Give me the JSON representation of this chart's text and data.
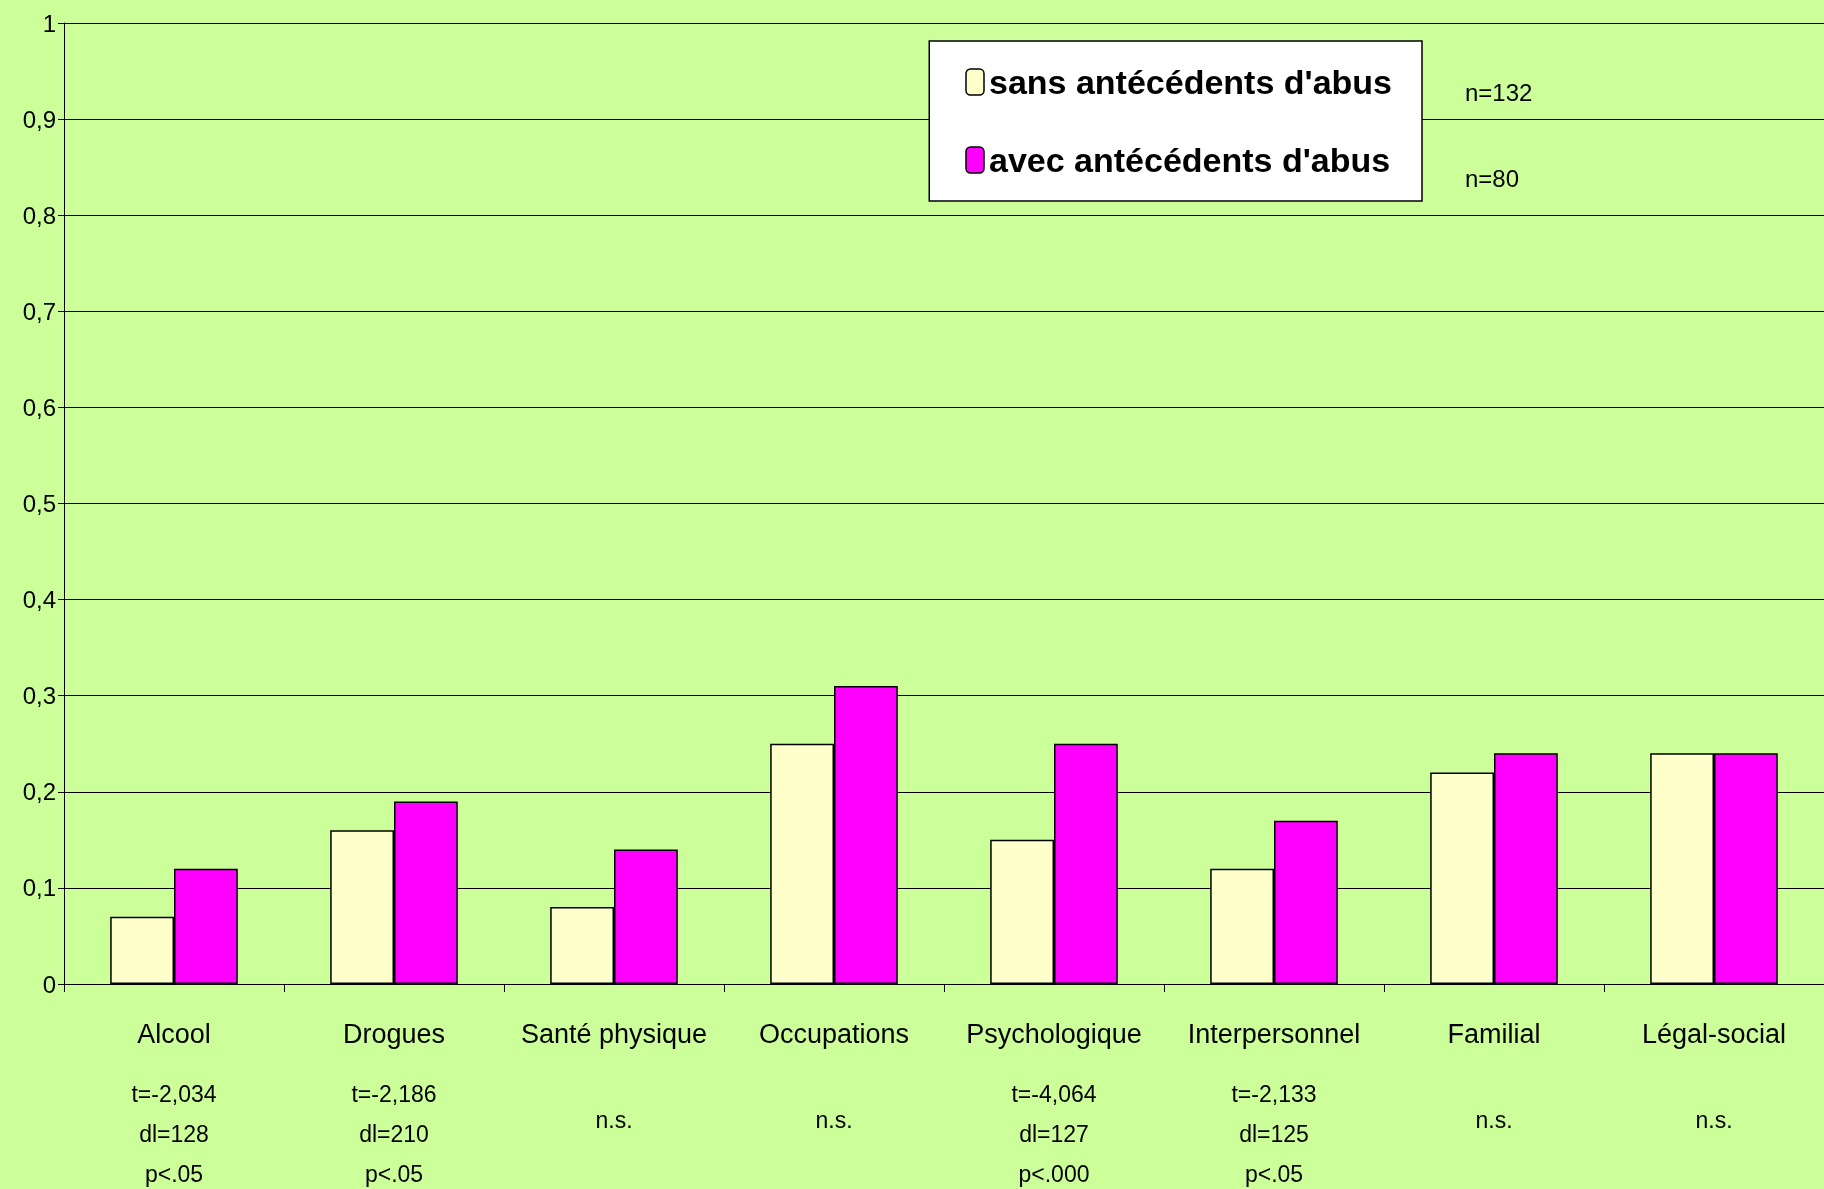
{
  "chart_data": {
    "type": "bar",
    "categories": [
      "Alcool",
      "Drogues",
      "Santé physique",
      "Occupations",
      "Psychologique",
      "Interpersonnel",
      "Familial",
      "Légal-social"
    ],
    "series": [
      {
        "name": "sans antécédents d'abus",
        "color": "#ffffcc",
        "values": [
          0.07,
          0.16,
          0.08,
          0.25,
          0.15,
          0.12,
          0.22,
          0.24
        ]
      },
      {
        "name": "avec antécédents d'abus",
        "color": "#ff00ff",
        "values": [
          0.12,
          0.19,
          0.14,
          0.31,
          0.25,
          0.17,
          0.24,
          0.24
        ]
      }
    ],
    "ylim": [
      0,
      1
    ],
    "yticks": [
      0,
      {
        "value": 0.1,
        "label": "0,1"
      },
      {
        "value": 0.2,
        "label": "0,2"
      },
      {
        "value": 0.3,
        "label": "0,3"
      },
      {
        "value": 0.4,
        "label": "0,4"
      },
      {
        "value": 0.5,
        "label": "0,5"
      },
      {
        "value": 0.6,
        "label": "0,6"
      },
      {
        "value": 0.7,
        "label": "0,7"
      },
      {
        "value": 0.8,
        "label": "0,8"
      },
      {
        "value": 0.9,
        "label": "0,9"
      },
      1
    ],
    "grid": "y",
    "legend": "top right",
    "annotations": [
      "t=-2,034\ndl=128\np<.05",
      "t=-2,186\ndl=210\np<.05",
      "n.s.",
      "n.s.",
      "t=-4,064\ndl=127\np<.000",
      "t=-2,133\ndl=125\np<.05",
      "n.s.",
      "n.s.",
      "n=132",
      "n=80"
    ]
  }
}
